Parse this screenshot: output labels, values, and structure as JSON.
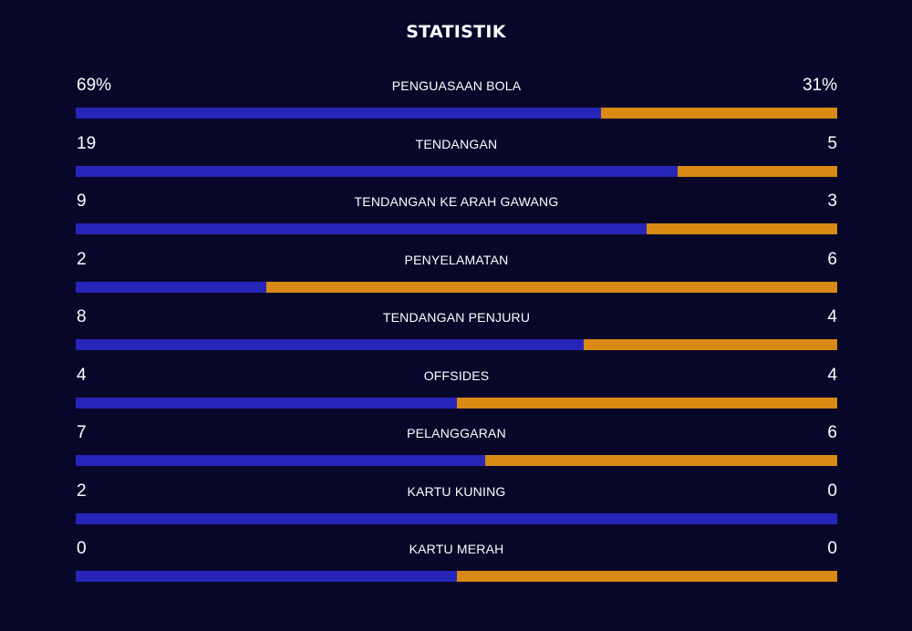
{
  "title": "STATISTIK",
  "colors": {
    "background": "#08072a",
    "home_bar": "#2625b8",
    "away_bar": "#d88a14",
    "text": "#ffffff"
  },
  "stats": [
    {
      "label": "PENGUASAAN BOLA",
      "home": "69%",
      "away": "31%",
      "home_share": 0.69
    },
    {
      "label": "TENDANGAN",
      "home": "19",
      "away": "5",
      "home_share": 0.79
    },
    {
      "label": "TENDANGAN KE ARAH GAWANG",
      "home": "9",
      "away": "3",
      "home_share": 0.75
    },
    {
      "label": "PENYELAMATAN",
      "home": "2",
      "away": "6",
      "home_share": 0.25
    },
    {
      "label": "TENDANGAN PENJURU",
      "home": "8",
      "away": "4",
      "home_share": 0.667
    },
    {
      "label": "OFFSIDES",
      "home": "4",
      "away": "4",
      "home_share": 0.5
    },
    {
      "label": "PELANGGARAN",
      "home": "7",
      "away": "6",
      "home_share": 0.538
    },
    {
      "label": "KARTU KUNING",
      "home": "2",
      "away": "0",
      "home_share": 1.0
    },
    {
      "label": "KARTU MERAH",
      "home": "0",
      "away": "0",
      "home_share": 0.5
    }
  ]
}
